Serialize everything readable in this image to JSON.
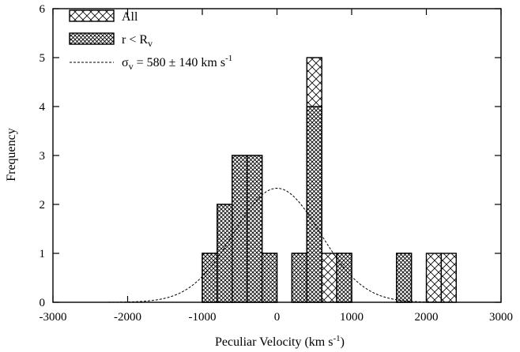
{
  "chart_data": {
    "type": "bar",
    "xlabel": "Peculiar Velocity (km s",
    "xlabel_sup": "-1",
    "xlabel_tail": ")",
    "ylabel": "Frequency",
    "xlim": [
      -3000,
      3000
    ],
    "ylim": [
      0,
      6
    ],
    "xticks": [
      -3000,
      -2000,
      -1000,
      0,
      1000,
      2000,
      3000
    ],
    "yticks": [
      0,
      1,
      2,
      3,
      4,
      5,
      6
    ],
    "bin_width": 200,
    "legend_position": "top-left",
    "series": [
      {
        "name": "All",
        "pattern": "cross-hatch-open",
        "bins": [
          {
            "x0": -1000,
            "value": 1
          },
          {
            "x0": -800,
            "value": 2
          },
          {
            "x0": -600,
            "value": 3
          },
          {
            "x0": -400,
            "value": 3
          },
          {
            "x0": -200,
            "value": 1
          },
          {
            "x0": 200,
            "value": 1
          },
          {
            "x0": 400,
            "value": 5
          },
          {
            "x0": 600,
            "value": 1
          },
          {
            "x0": 800,
            "value": 1
          },
          {
            "x0": 1600,
            "value": 1
          },
          {
            "x0": 2000,
            "value": 1
          },
          {
            "x0": 2200,
            "value": 1
          }
        ]
      },
      {
        "name": "r < R",
        "name_sub": "v",
        "pattern": "cross-hatch-dense",
        "bins": [
          {
            "x0": -1000,
            "value": 1
          },
          {
            "x0": -800,
            "value": 2
          },
          {
            "x0": -600,
            "value": 3
          },
          {
            "x0": -400,
            "value": 3
          },
          {
            "x0": -200,
            "value": 1
          },
          {
            "x0": 200,
            "value": 1
          },
          {
            "x0": 400,
            "value": 4
          },
          {
            "x0": 800,
            "value": 1
          },
          {
            "x0": 1600,
            "value": 1
          }
        ]
      },
      {
        "name": "σ",
        "name_sub": "v",
        "name_tail": " = 580 ± 140 km s",
        "name_sup": "-1",
        "type": "gaussian-curve",
        "style": "dashed",
        "mean": 0,
        "sigma": 580,
        "peak": 2.33
      }
    ]
  }
}
